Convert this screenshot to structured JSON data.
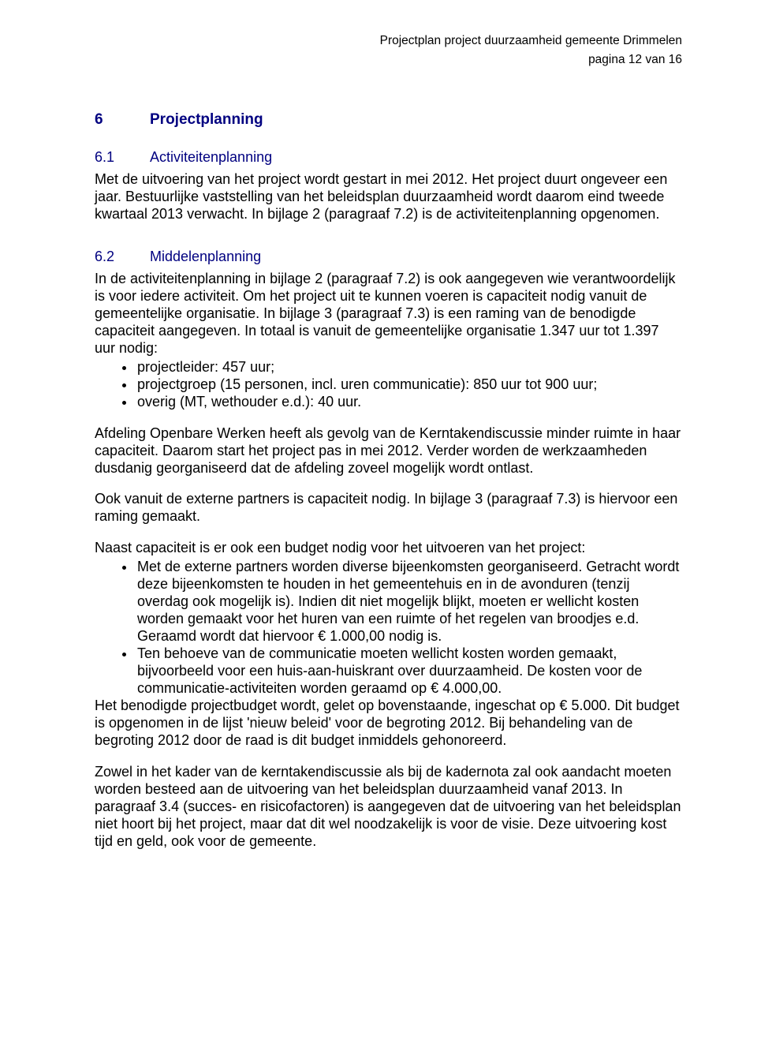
{
  "header": {
    "doc_title": "Projectplan project duurzaamheid gemeente Drimmelen",
    "page_info": "pagina 12 van 16"
  },
  "colors": {
    "heading": "#000080",
    "text": "#000000",
    "background": "#ffffff"
  },
  "typography": {
    "body_font": "Arial",
    "body_size_pt": 12,
    "header_size_pt": 10,
    "h1_size_pt": 13,
    "h2_size_pt": 12
  },
  "h1": {
    "num": "6",
    "title": "Projectplanning"
  },
  "h2a": {
    "num": "6.1",
    "title": "Activiteitenplanning"
  },
  "p1": "Met de uitvoering van het project wordt gestart in mei 2012. Het project duurt ongeveer een jaar. Bestuurlijke vaststelling van het beleidsplan duurzaamheid wordt daarom eind tweede kwartaal 2013 verwacht. In bijlage 2 (paragraaf 7.2) is de activiteitenplanning opgenomen.",
  "h2b": {
    "num": "6.2",
    "title": "Middelenplanning"
  },
  "p2": "In de activiteitenplanning in bijlage 2 (paragraaf 7.2) is ook aangegeven wie verantwoordelijk is voor iedere activiteit. Om het project uit te kunnen voeren is capaciteit nodig vanuit de gemeentelijke organisatie. In bijlage 3 (paragraaf 7.3) is een raming van de benodigde capaciteit aangegeven. In totaal is vanuit de gemeentelijke organisatie 1.347 uur tot 1.397 uur nodig:",
  "list1": [
    "projectleider: 457 uur;",
    "projectgroep (15 personen, incl. uren communicatie): 850 uur tot 900 uur;",
    "overig (MT, wethouder e.d.): 40 uur."
  ],
  "p3": "Afdeling Openbare Werken heeft als gevolg van de Kerntakendiscussie minder ruimte in haar capaciteit. Daarom start het project pas in mei 2012. Verder worden de werkzaamheden dusdanig georganiseerd dat de afdeling zoveel mogelijk wordt ontlast.",
  "p4": "Ook vanuit de externe partners is capaciteit nodig. In bijlage 3  (paragraaf 7.3) is hiervoor een raming gemaakt.",
  "p5": "Naast capaciteit is er ook een budget nodig voor het uitvoeren van het project:",
  "list2": [
    "Met de externe partners worden diverse bijeenkomsten georganiseerd. Getracht wordt deze bijeenkomsten te houden in het gemeentehuis en in de avonduren (tenzij overdag ook mogelijk is). Indien dit niet mogelijk blijkt, moeten er wellicht kosten worden gemaakt voor het huren van een ruimte of het regelen van broodjes e.d. Geraamd wordt dat hiervoor € 1.000,00 nodig is.",
    "Ten behoeve van de communicatie moeten wellicht kosten worden gemaakt, bijvoorbeeld voor een huis-aan-huiskrant over duurzaamheid. De kosten voor de communicatie-activiteiten worden geraamd op € 4.000,00."
  ],
  "p6": "Het benodigde projectbudget wordt, gelet op bovenstaande, ingeschat op € 5.000.  Dit budget is opgenomen in de lijst 'nieuw beleid' voor de begroting 2012. Bij behandeling van de begroting 2012 door de raad is dit budget inmiddels gehonoreerd.",
  "p7": "Zowel in het kader van de kerntakendiscussie als bij de kadernota zal ook aandacht moeten worden besteed aan de uitvoering van het beleidsplan duurzaamheid vanaf 2013. In paragraaf 3.4 (succes- en risicofactoren) is aangegeven dat de uitvoering van het beleidsplan niet hoort bij het project, maar dat dit wel noodzakelijk is voor de visie. Deze uitvoering kost tijd en geld, ook voor de gemeente."
}
